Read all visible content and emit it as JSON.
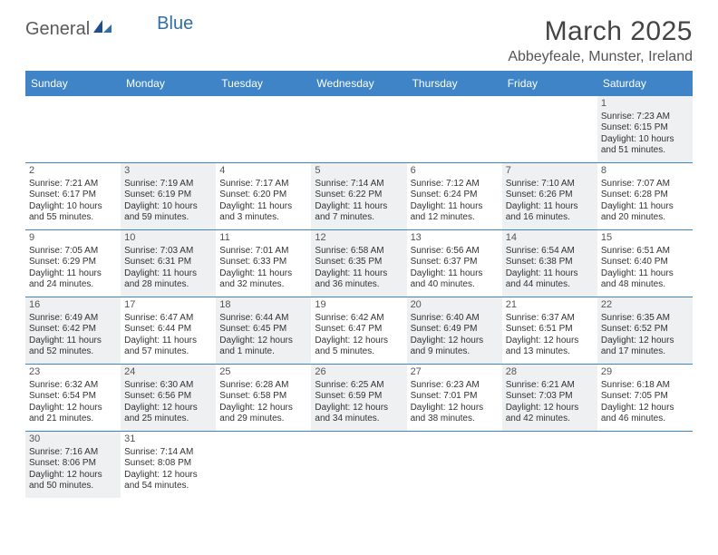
{
  "logo": {
    "text1": "General",
    "text2": "Blue"
  },
  "title": "March 2025",
  "location": "Abbeyfeale, Munster, Ireland",
  "weekday_bg": "#3e84c6",
  "weekday_fg": "#ffffff",
  "border_color": "#3e84c6",
  "shaded_bg": "#eef0f1",
  "weekdays": [
    "Sunday",
    "Monday",
    "Tuesday",
    "Wednesday",
    "Thursday",
    "Friday",
    "Saturday"
  ],
  "cells": [
    {
      "empty": true
    },
    {
      "empty": true
    },
    {
      "empty": true
    },
    {
      "empty": true
    },
    {
      "empty": true
    },
    {
      "empty": true
    },
    {
      "num": "1",
      "shaded": true,
      "sunrise": "Sunrise: 7:23 AM",
      "sunset": "Sunset: 6:15 PM",
      "day1": "Daylight: 10 hours",
      "day2": "and 51 minutes."
    },
    {
      "num": "2",
      "shaded": false,
      "sunrise": "Sunrise: 7:21 AM",
      "sunset": "Sunset: 6:17 PM",
      "day1": "Daylight: 10 hours",
      "day2": "and 55 minutes."
    },
    {
      "num": "3",
      "shaded": true,
      "sunrise": "Sunrise: 7:19 AM",
      "sunset": "Sunset: 6:19 PM",
      "day1": "Daylight: 10 hours",
      "day2": "and 59 minutes."
    },
    {
      "num": "4",
      "shaded": false,
      "sunrise": "Sunrise: 7:17 AM",
      "sunset": "Sunset: 6:20 PM",
      "day1": "Daylight: 11 hours",
      "day2": "and 3 minutes."
    },
    {
      "num": "5",
      "shaded": true,
      "sunrise": "Sunrise: 7:14 AM",
      "sunset": "Sunset: 6:22 PM",
      "day1": "Daylight: 11 hours",
      "day2": "and 7 minutes."
    },
    {
      "num": "6",
      "shaded": false,
      "sunrise": "Sunrise: 7:12 AM",
      "sunset": "Sunset: 6:24 PM",
      "day1": "Daylight: 11 hours",
      "day2": "and 12 minutes."
    },
    {
      "num": "7",
      "shaded": true,
      "sunrise": "Sunrise: 7:10 AM",
      "sunset": "Sunset: 6:26 PM",
      "day1": "Daylight: 11 hours",
      "day2": "and 16 minutes."
    },
    {
      "num": "8",
      "shaded": false,
      "sunrise": "Sunrise: 7:07 AM",
      "sunset": "Sunset: 6:28 PM",
      "day1": "Daylight: 11 hours",
      "day2": "and 20 minutes."
    },
    {
      "num": "9",
      "shaded": false,
      "sunrise": "Sunrise: 7:05 AM",
      "sunset": "Sunset: 6:29 PM",
      "day1": "Daylight: 11 hours",
      "day2": "and 24 minutes."
    },
    {
      "num": "10",
      "shaded": true,
      "sunrise": "Sunrise: 7:03 AM",
      "sunset": "Sunset: 6:31 PM",
      "day1": "Daylight: 11 hours",
      "day2": "and 28 minutes."
    },
    {
      "num": "11",
      "shaded": false,
      "sunrise": "Sunrise: 7:01 AM",
      "sunset": "Sunset: 6:33 PM",
      "day1": "Daylight: 11 hours",
      "day2": "and 32 minutes."
    },
    {
      "num": "12",
      "shaded": true,
      "sunrise": "Sunrise: 6:58 AM",
      "sunset": "Sunset: 6:35 PM",
      "day1": "Daylight: 11 hours",
      "day2": "and 36 minutes."
    },
    {
      "num": "13",
      "shaded": false,
      "sunrise": "Sunrise: 6:56 AM",
      "sunset": "Sunset: 6:37 PM",
      "day1": "Daylight: 11 hours",
      "day2": "and 40 minutes."
    },
    {
      "num": "14",
      "shaded": true,
      "sunrise": "Sunrise: 6:54 AM",
      "sunset": "Sunset: 6:38 PM",
      "day1": "Daylight: 11 hours",
      "day2": "and 44 minutes."
    },
    {
      "num": "15",
      "shaded": false,
      "sunrise": "Sunrise: 6:51 AM",
      "sunset": "Sunset: 6:40 PM",
      "day1": "Daylight: 11 hours",
      "day2": "and 48 minutes."
    },
    {
      "num": "16",
      "shaded": true,
      "sunrise": "Sunrise: 6:49 AM",
      "sunset": "Sunset: 6:42 PM",
      "day1": "Daylight: 11 hours",
      "day2": "and 52 minutes."
    },
    {
      "num": "17",
      "shaded": false,
      "sunrise": "Sunrise: 6:47 AM",
      "sunset": "Sunset: 6:44 PM",
      "day1": "Daylight: 11 hours",
      "day2": "and 57 minutes."
    },
    {
      "num": "18",
      "shaded": true,
      "sunrise": "Sunrise: 6:44 AM",
      "sunset": "Sunset: 6:45 PM",
      "day1": "Daylight: 12 hours",
      "day2": "and 1 minute."
    },
    {
      "num": "19",
      "shaded": false,
      "sunrise": "Sunrise: 6:42 AM",
      "sunset": "Sunset: 6:47 PM",
      "day1": "Daylight: 12 hours",
      "day2": "and 5 minutes."
    },
    {
      "num": "20",
      "shaded": true,
      "sunrise": "Sunrise: 6:40 AM",
      "sunset": "Sunset: 6:49 PM",
      "day1": "Daylight: 12 hours",
      "day2": "and 9 minutes."
    },
    {
      "num": "21",
      "shaded": false,
      "sunrise": "Sunrise: 6:37 AM",
      "sunset": "Sunset: 6:51 PM",
      "day1": "Daylight: 12 hours",
      "day2": "and 13 minutes."
    },
    {
      "num": "22",
      "shaded": true,
      "sunrise": "Sunrise: 6:35 AM",
      "sunset": "Sunset: 6:52 PM",
      "day1": "Daylight: 12 hours",
      "day2": "and 17 minutes."
    },
    {
      "num": "23",
      "shaded": false,
      "sunrise": "Sunrise: 6:32 AM",
      "sunset": "Sunset: 6:54 PM",
      "day1": "Daylight: 12 hours",
      "day2": "and 21 minutes."
    },
    {
      "num": "24",
      "shaded": true,
      "sunrise": "Sunrise: 6:30 AM",
      "sunset": "Sunset: 6:56 PM",
      "day1": "Daylight: 12 hours",
      "day2": "and 25 minutes."
    },
    {
      "num": "25",
      "shaded": false,
      "sunrise": "Sunrise: 6:28 AM",
      "sunset": "Sunset: 6:58 PM",
      "day1": "Daylight: 12 hours",
      "day2": "and 29 minutes."
    },
    {
      "num": "26",
      "shaded": true,
      "sunrise": "Sunrise: 6:25 AM",
      "sunset": "Sunset: 6:59 PM",
      "day1": "Daylight: 12 hours",
      "day2": "and 34 minutes."
    },
    {
      "num": "27",
      "shaded": false,
      "sunrise": "Sunrise: 6:23 AM",
      "sunset": "Sunset: 7:01 PM",
      "day1": "Daylight: 12 hours",
      "day2": "and 38 minutes."
    },
    {
      "num": "28",
      "shaded": true,
      "sunrise": "Sunrise: 6:21 AM",
      "sunset": "Sunset: 7:03 PM",
      "day1": "Daylight: 12 hours",
      "day2": "and 42 minutes."
    },
    {
      "num": "29",
      "shaded": false,
      "sunrise": "Sunrise: 6:18 AM",
      "sunset": "Sunset: 7:05 PM",
      "day1": "Daylight: 12 hours",
      "day2": "and 46 minutes."
    },
    {
      "num": "30",
      "shaded": true,
      "sunrise": "Sunrise: 7:16 AM",
      "sunset": "Sunset: 8:06 PM",
      "day1": "Daylight: 12 hours",
      "day2": "and 50 minutes."
    },
    {
      "num": "31",
      "shaded": false,
      "sunrise": "Sunrise: 7:14 AM",
      "sunset": "Sunset: 8:08 PM",
      "day1": "Daylight: 12 hours",
      "day2": "and 54 minutes."
    },
    {
      "empty": true
    },
    {
      "empty": true
    },
    {
      "empty": true
    },
    {
      "empty": true
    },
    {
      "empty": true
    }
  ]
}
